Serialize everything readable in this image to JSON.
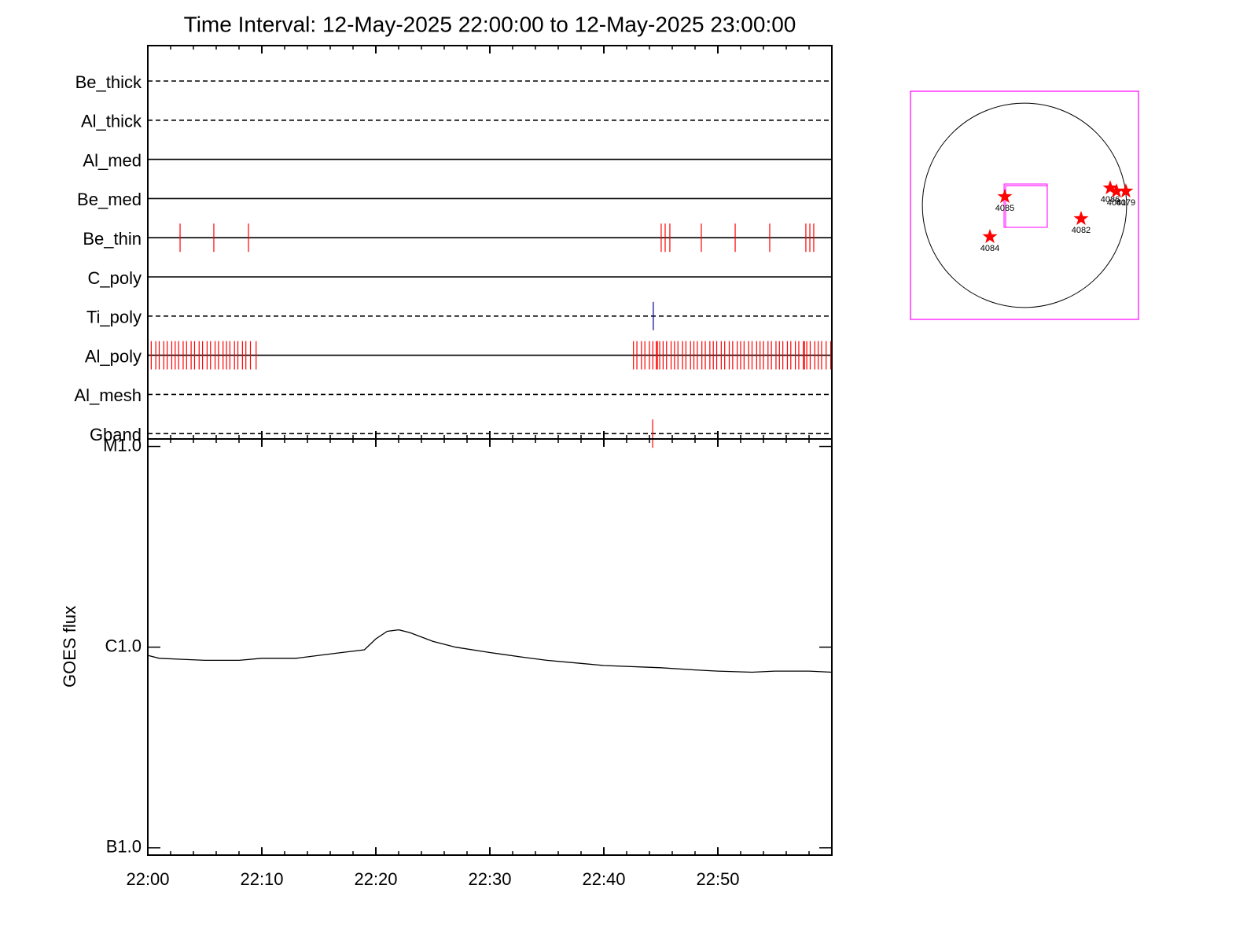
{
  "chart_data": [
    {
      "type": "events",
      "title": "Time Interval: 12-May-2025 22:00:00 to 12-May-2025 23:00:00",
      "xlim": [
        0,
        60
      ],
      "xticks": [
        {
          "value": 0,
          "label": "22:00"
        },
        {
          "value": 10,
          "label": "22:10"
        },
        {
          "value": 20,
          "label": "22:20"
        },
        {
          "value": 30,
          "label": "22:30"
        },
        {
          "value": 40,
          "label": "22:40"
        },
        {
          "value": 50,
          "label": "22:50"
        }
      ],
      "xminor": [
        2,
        4,
        6,
        8,
        12,
        14,
        16,
        18,
        22,
        24,
        26,
        28,
        32,
        34,
        36,
        38,
        42,
        44,
        46,
        48,
        52,
        54,
        56,
        58
      ],
      "rows": [
        {
          "name": "Be_thick",
          "style": "dashed",
          "color": "#ff0000",
          "events": []
        },
        {
          "name": "Al_thick",
          "style": "dashed",
          "color": "#ff0000",
          "events": []
        },
        {
          "name": "Al_med",
          "style": "solid",
          "color": "#ff0000",
          "events": []
        },
        {
          "name": "Be_med",
          "style": "solid",
          "color": "#ff0000",
          "events": []
        },
        {
          "name": "Be_thin",
          "style": "solid",
          "color": "#ff0000",
          "events": [
            0,
            2.83,
            5.79,
            8.83,
            45.03,
            45.38,
            45.79,
            48.55,
            51.52,
            54.55,
            57.72,
            58.07,
            58.41
          ]
        },
        {
          "name": "C_poly",
          "style": "solid",
          "color": "#ff0000",
          "events": []
        },
        {
          "name": "Ti_poly",
          "style": "dashed",
          "color": "#0000aa",
          "events": [
            44.34
          ]
        },
        {
          "name": "Al_poly",
          "style": "solid",
          "color": "#ff0000",
          "events": [
            0.3,
            0.7,
            1.0,
            1.4,
            1.7,
            2.1,
            2.4,
            2.7,
            3.1,
            3.4,
            3.8,
            4.1,
            4.5,
            4.8,
            5.2,
            5.5,
            5.9,
            6.2,
            6.6,
            6.9,
            7.2,
            7.6,
            7.9,
            8.3,
            8.6,
            9.0,
            9.5,
            42.6,
            42.9,
            43.3,
            43.6,
            44.0,
            44.3,
            44.6,
            44.7,
            44.9,
            45.2,
            45.5,
            45.9,
            46.2,
            46.5,
            46.9,
            47.2,
            47.6,
            47.9,
            48.2,
            48.6,
            48.9,
            49.3,
            49.6,
            49.9,
            50.3,
            50.6,
            51.0,
            51.3,
            51.7,
            52.0,
            52.3,
            52.7,
            53.0,
            53.4,
            53.7,
            54.0,
            54.4,
            54.7,
            55.1,
            55.4,
            55.7,
            56.1,
            56.4,
            56.8,
            57.1,
            57.5,
            57.6,
            57.8,
            58.1,
            58.5,
            58.8,
            59.1,
            59.5,
            59.9
          ]
        },
        {
          "name": "Al_mesh",
          "style": "dashed",
          "color": "#ff0000",
          "events": []
        },
        {
          "name": "Gband",
          "style": "dashed",
          "color": "#ff0000",
          "events": [
            44.28
          ]
        }
      ]
    },
    {
      "type": "line",
      "ylabel": "GOES flux",
      "log_y": true,
      "color": "#000000",
      "x": [
        0,
        1,
        3,
        5,
        8,
        10,
        13,
        15,
        17,
        19,
        20,
        21,
        22,
        23,
        25,
        27,
        30,
        33,
        35,
        38,
        40,
        45,
        48,
        50,
        53,
        55,
        58,
        60
      ],
      "values": [
        9.1e-07,
        8.8e-07,
        8.7e-07,
        8.6e-07,
        8.6e-07,
        8.8e-07,
        8.8e-07,
        9.1e-07,
        9.4e-07,
        9.7e-07,
        1.1e-06,
        1.2e-06,
        1.22e-06,
        1.18e-06,
        1.07e-06,
        1e-06,
        9.4e-07,
        8.9e-07,
        8.6e-07,
        8.3e-07,
        8.1e-07,
        7.9e-07,
        7.7e-07,
        7.6e-07,
        7.5e-07,
        7.6e-07,
        7.6e-07,
        7.5e-07
      ],
      "xlim": [
        0,
        60
      ],
      "xticks": [
        {
          "value": 0,
          "label": "22:00"
        },
        {
          "value": 10,
          "label": "22:10"
        },
        {
          "value": 20,
          "label": "22:20"
        },
        {
          "value": 30,
          "label": "22:30"
        },
        {
          "value": 40,
          "label": "22:40"
        },
        {
          "value": 50,
          "label": "22:50"
        }
      ],
      "xminor": [
        2,
        4,
        6,
        8,
        12,
        14,
        16,
        18,
        22,
        24,
        26,
        28,
        32,
        34,
        36,
        38,
        42,
        44,
        46,
        48,
        52,
        54,
        56,
        58
      ],
      "ylim": [
        9.2e-08,
        1.09e-05
      ],
      "yticks": [
        {
          "value": 1e-07,
          "label": "B1.0"
        },
        {
          "value": 1e-06,
          "label": "C1.0"
        },
        {
          "value": 1e-05,
          "label": "M1.0"
        }
      ]
    },
    {
      "type": "disk",
      "xlim": [
        -1072,
        1072
      ],
      "ylim": [
        -1072,
        1072
      ],
      "radius": 960,
      "box_color": "#ff00ff",
      "fov": {
        "x": [
          -192,
          214
        ],
        "y": [
          -207,
          200
        ]
      },
      "regions": [
        {
          "name": "4085",
          "x": -185,
          "y": 81
        },
        {
          "name": "4082",
          "x": 532,
          "y": -126
        },
        {
          "name": "4084",
          "x": -325,
          "y": -296
        },
        {
          "name": "4086",
          "x": 806,
          "y": 163
        },
        {
          "name": "4081",
          "x": 865,
          "y": 133
        },
        {
          "name": "4079",
          "x": 953,
          "y": 133
        }
      ],
      "color": "#ff0000"
    }
  ]
}
